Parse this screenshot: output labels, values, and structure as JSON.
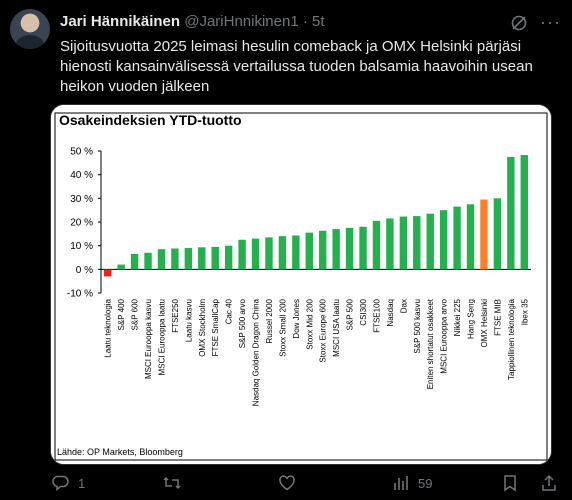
{
  "tweet": {
    "author_name": "Jari Hännikäinen",
    "handle": "@JariHnnikinen1",
    "separator": "·",
    "time": "5t",
    "text": "Sijoitusvuotta 2025 leimasi hesulin comeback ja OMX Helsinki pärjäsi hienosti kansainvälisessä vertailussa  tuoden balsamia haavoihin usean heikon vuoden jälkeen",
    "more": "···"
  },
  "actions": {
    "replies": "1",
    "reposts": "",
    "likes": "",
    "views": "59"
  },
  "chart_data": {
    "type": "bar",
    "title": "Osakeindeksien YTD-tuotto",
    "source": "Lähde: OP Markets, Bloomberg",
    "ylim": [
      -10,
      50
    ],
    "yticks": [
      -10,
      0,
      10,
      20,
      30,
      40,
      50
    ],
    "ytick_labels": [
      "-10 %",
      "0 %",
      "10 %",
      "20 %",
      "30 %",
      "40 %",
      "50 %"
    ],
    "categories": [
      "Laatu teknologia",
      "S&P 400",
      "S&P 600",
      "MSCI Eurooppa kasvu",
      "MSCI Eurooppa laatu",
      "FTSE250",
      "Laatu kasvu",
      "OMX Stockholm",
      "FTSE SmallCap",
      "Cac 40",
      "S&P 500 arvo",
      "Nasdaq Golden Dragon China",
      "Russel 2000",
      "Stoxx Small 200",
      "Dow Jones",
      "Stoxx Mid 200",
      "Stoxx Europe 600",
      "MSCI USA laatu",
      "S&P 500",
      "CSI300",
      "FTSE100",
      "Nasdaq",
      "Dax",
      "S&P 500 kasvu",
      "Eniten shortatut osakkeet",
      "MSCI Eurooppa arvo",
      "Nikkei 225",
      "Hang Seng",
      "OMX Helsinki",
      "FTSE MIB",
      "Tappiollinen teknologia",
      "Ibex 35"
    ],
    "values": [
      -3,
      2,
      6.5,
      7,
      8.5,
      8.8,
      9,
      9.3,
      9.5,
      10,
      12.5,
      13,
      13.5,
      14,
      14.3,
      15.5,
      16.3,
      17,
      17.5,
      18,
      20.5,
      21.5,
      22.3,
      22.5,
      23.5,
      25,
      26.5,
      27.5,
      29.5,
      30,
      47.5,
      48.3
    ],
    "colors": {
      "default": "#22b14c",
      "negative": "#e8231a",
      "highlight": "#ff7f27"
    },
    "highlight_index": 28,
    "negative_index": 0,
    "grid": false,
    "legend": "none"
  }
}
